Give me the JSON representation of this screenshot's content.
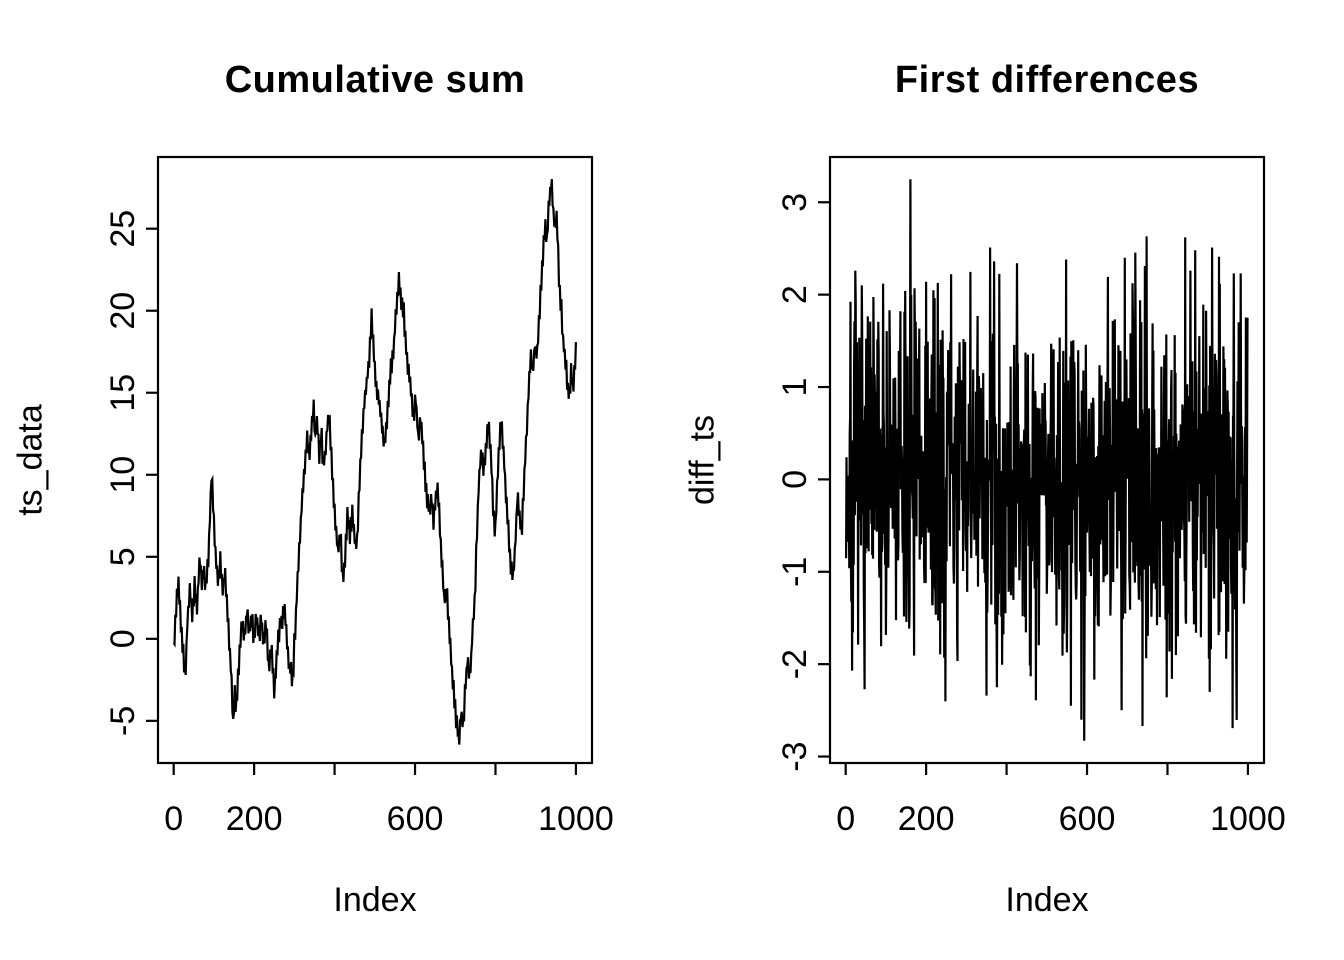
{
  "figure": {
    "background": "#ffffff",
    "line_color": "#000000",
    "text_color": "#000000"
  },
  "chart_data": [
    {
      "type": "line",
      "title": "Cumulative sum",
      "xlabel": "Index",
      "ylabel": "ts_data",
      "grid": false,
      "legend": null,
      "x_axis": {
        "range": [
          -38.96,
          1039.96
        ],
        "ticks": [
          0,
          200,
          400,
          600,
          800,
          1000
        ],
        "tick_labels": [
          "0",
          "200",
          "",
          "600",
          "",
          "1000"
        ]
      },
      "y_axis": {
        "range": [
          -7.57,
          29.37
        ],
        "ticks": [
          -5,
          0,
          5,
          10,
          15,
          20,
          25
        ],
        "tick_labels": [
          "-5",
          "0",
          "5",
          "10",
          "15",
          "20",
          "25"
        ]
      },
      "series": {
        "kind": "random-walk-waypoints",
        "n": 1000,
        "step": 2,
        "jitter_amp": 0.8,
        "seed": 11,
        "min": -6.3,
        "max": 28.0,
        "waypoints": [
          [
            0,
            -0.7
          ],
          [
            6,
            1.8
          ],
          [
            12,
            3.6
          ],
          [
            18,
            0.8
          ],
          [
            24,
            -0.7
          ],
          [
            29,
            -2.7
          ],
          [
            34,
            1.0
          ],
          [
            40,
            2.9
          ],
          [
            46,
            1.5
          ],
          [
            52,
            3.2
          ],
          [
            58,
            2.0
          ],
          [
            63,
            4.0
          ],
          [
            66,
            5.1
          ],
          [
            70,
            3.2
          ],
          [
            75,
            4.2
          ],
          [
            80,
            3.0
          ],
          [
            85,
            4.5
          ],
          [
            89,
            6.5
          ],
          [
            94,
            10.3
          ],
          [
            99,
            7.8
          ],
          [
            104,
            5.0
          ],
          [
            110,
            3.4
          ],
          [
            116,
            4.6
          ],
          [
            122,
            3.0
          ],
          [
            127,
            4.3
          ],
          [
            132,
            2.4
          ],
          [
            138,
            0.0
          ],
          [
            143,
            -2.2
          ],
          [
            148,
            -5.1
          ],
          [
            152,
            -3.2
          ],
          [
            156,
            -4.3
          ],
          [
            160,
            -2.2
          ],
          [
            165,
            -0.5
          ],
          [
            170,
            1.3
          ],
          [
            176,
            0.2
          ],
          [
            182,
            1.6
          ],
          [
            188,
            0.4
          ],
          [
            194,
            1.2
          ],
          [
            200,
            0.1
          ],
          [
            206,
            1.5
          ],
          [
            212,
            0.3
          ],
          [
            218,
            1.2
          ],
          [
            224,
            -0.3
          ],
          [
            230,
            0.8
          ],
          [
            237,
            -1.9
          ],
          [
            243,
            -0.5
          ],
          [
            250,
            -3.3
          ],
          [
            256,
            -1.2
          ],
          [
            262,
            0.5
          ],
          [
            268,
            1.0
          ],
          [
            275,
            1.9
          ],
          [
            282,
            -0.2
          ],
          [
            288,
            -1.7
          ],
          [
            296,
            -2.6
          ],
          [
            301,
            0.2
          ],
          [
            306,
            2.6
          ],
          [
            311,
            5.0
          ],
          [
            316,
            7.2
          ],
          [
            321,
            9.0
          ],
          [
            326,
            10.6
          ],
          [
            332,
            12.2
          ],
          [
            337,
            10.9
          ],
          [
            342,
            12.5
          ],
          [
            348,
            14.1
          ],
          [
            352,
            12.3
          ],
          [
            357,
            13.6
          ],
          [
            362,
            11.3
          ],
          [
            367,
            12.7
          ],
          [
            372,
            10.3
          ],
          [
            377,
            11.5
          ],
          [
            382,
            12.9
          ],
          [
            386,
            13.7
          ],
          [
            391,
            11.6
          ],
          [
            396,
            9.2
          ],
          [
            402,
            7.2
          ],
          [
            408,
            5.4
          ],
          [
            414,
            6.6
          ],
          [
            420,
            3.8
          ],
          [
            426,
            4.8
          ],
          [
            432,
            7.3
          ],
          [
            438,
            6.2
          ],
          [
            444,
            7.8
          ],
          [
            450,
            6.0
          ],
          [
            455,
            5.6
          ],
          [
            461,
            9.0
          ],
          [
            467,
            12.3
          ],
          [
            473,
            14.0
          ],
          [
            479,
            15.5
          ],
          [
            486,
            17.2
          ],
          [
            492,
            19.4
          ],
          [
            498,
            17.4
          ],
          [
            504,
            15.0
          ],
          [
            511,
            14.6
          ],
          [
            517,
            13.0
          ],
          [
            525,
            11.9
          ],
          [
            532,
            14.0
          ],
          [
            540,
            16.5
          ],
          [
            547,
            17.8
          ],
          [
            553,
            20.0
          ],
          [
            559,
            21.9
          ],
          [
            565,
            20.5
          ],
          [
            572,
            19.9
          ],
          [
            578,
            17.6
          ],
          [
            584,
            16.2
          ],
          [
            590,
            15.0
          ],
          [
            596,
            13.7
          ],
          [
            602,
            14.6
          ],
          [
            608,
            12.4
          ],
          [
            614,
            13.6
          ],
          [
            620,
            11.5
          ],
          [
            625,
            10.0
          ],
          [
            629,
            8.7
          ],
          [
            636,
            7.9
          ],
          [
            641,
            8.8
          ],
          [
            646,
            7.2
          ],
          [
            651,
            8.3
          ],
          [
            656,
            9.2
          ],
          [
            661,
            7.1
          ],
          [
            667,
            4.6
          ],
          [
            673,
            2.2
          ],
          [
            679,
            3.1
          ],
          [
            685,
            0.6
          ],
          [
            691,
            -1.8
          ],
          [
            697,
            -3.4
          ],
          [
            703,
            -5.0
          ],
          [
            710,
            -6.3
          ],
          [
            714,
            -4.2
          ],
          [
            719,
            -5.4
          ],
          [
            725,
            -3.1
          ],
          [
            731,
            -1.2
          ],
          [
            737,
            -2.4
          ],
          [
            743,
            0.4
          ],
          [
            749,
            2.9
          ],
          [
            754,
            6.4
          ],
          [
            759,
            9.8
          ],
          [
            765,
            11.4
          ],
          [
            771,
            10.1
          ],
          [
            777,
            11.9
          ],
          [
            783,
            13.2
          ],
          [
            789,
            11.1
          ],
          [
            794,
            8.2
          ],
          [
            799,
            6.4
          ],
          [
            804,
            9.4
          ],
          [
            809,
            11.9
          ],
          [
            814,
            13.1
          ],
          [
            820,
            11.4
          ],
          [
            826,
            9.1
          ],
          [
            832,
            6.6
          ],
          [
            838,
            4.6
          ],
          [
            844,
            3.8
          ],
          [
            850,
            6.1
          ],
          [
            855,
            8.9
          ],
          [
            860,
            7.4
          ],
          [
            865,
            6.3
          ],
          [
            870,
            9.1
          ],
          [
            876,
            12.1
          ],
          [
            882,
            14.9
          ],
          [
            888,
            17.4
          ],
          [
            893,
            16.3
          ],
          [
            898,
            17.9
          ],
          [
            903,
            17.1
          ],
          [
            908,
            19.4
          ],
          [
            913,
            21.4
          ],
          [
            918,
            23.4
          ],
          [
            923,
            25.4
          ],
          [
            928,
            24.4
          ],
          [
            933,
            26.4
          ],
          [
            938,
            28.0
          ],
          [
            943,
            26.4
          ],
          [
            948,
            24.9
          ],
          [
            953,
            25.7
          ],
          [
            958,
            21.9
          ],
          [
            963,
            20.4
          ],
          [
            968,
            18.3
          ],
          [
            973,
            17.1
          ],
          [
            978,
            15.9
          ],
          [
            983,
            14.7
          ],
          [
            988,
            16.3
          ],
          [
            993,
            15.3
          ],
          [
            1000,
            17.4
          ]
        ]
      }
    },
    {
      "type": "line",
      "title": "First differences",
      "xlabel": "Index",
      "ylabel": "diff_ts",
      "grid": false,
      "legend": null,
      "x_axis": {
        "range": [
          -38.96,
          1039.96
        ],
        "ticks": [
          0,
          200,
          400,
          600,
          800,
          1000
        ],
        "tick_labels": [
          "0",
          "200",
          "",
          "600",
          "",
          "1000"
        ]
      },
      "y_axis": {
        "range": [
          -3.07,
          3.49
        ],
        "ticks": [
          -3,
          -2,
          -1,
          0,
          1,
          2,
          3
        ],
        "tick_labels": [
          "-3",
          "-2",
          "-1",
          "0",
          "1",
          "2",
          "3"
        ]
      },
      "series": {
        "kind": "white-noise",
        "n": 999,
        "mean": 0,
        "sd": 0.95,
        "min": -2.83,
        "max": 3.25,
        "seed": 7,
        "spikes": [
          [
            16,
            -2.07
          ],
          [
            40,
            2.1
          ],
          [
            93,
            2.12
          ],
          [
            148,
            2.04
          ],
          [
            161,
            3.25
          ],
          [
            171,
            2.07
          ],
          [
            200,
            2.14
          ],
          [
            262,
            2.22
          ],
          [
            350,
            -2.34
          ],
          [
            359,
            2.51
          ],
          [
            369,
            2.36
          ],
          [
            426,
            2.34
          ],
          [
            473,
            -2.39
          ],
          [
            548,
            2.38
          ],
          [
            560,
            -2.45
          ],
          [
            593,
            -2.83
          ],
          [
            686,
            -2.5
          ],
          [
            694,
            2.4
          ],
          [
            744,
            2.31
          ],
          [
            748,
            2.63
          ],
          [
            798,
            -2.36
          ],
          [
            844,
            2.62
          ],
          [
            857,
            2.26
          ],
          [
            869,
            2.48
          ],
          [
            905,
            -2.3
          ],
          [
            911,
            2.51
          ],
          [
            928,
            2.41
          ],
          [
            965,
            2.23
          ],
          [
            982,
            2.23
          ]
        ]
      }
    }
  ]
}
